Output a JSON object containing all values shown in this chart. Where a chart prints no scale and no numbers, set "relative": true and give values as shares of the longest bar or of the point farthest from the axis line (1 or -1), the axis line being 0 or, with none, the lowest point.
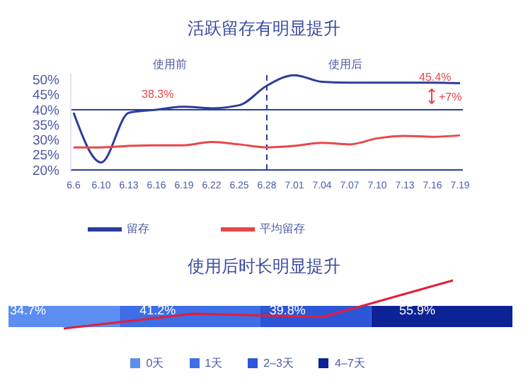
{
  "chart_data": [
    {
      "type": "line",
      "title": "活跃留存有明显提升",
      "categories": [
        "6.6",
        "6.10",
        "6.13",
        "6.16",
        "6.19",
        "6.22",
        "6.25",
        "6.28",
        "7.01",
        "7.04",
        "7.07",
        "7.10",
        "7.13",
        "7.16",
        "7.19"
      ],
      "series": [
        {
          "name": "留存",
          "color": "#2b3d9c",
          "values": [
            39,
            22.5,
            39,
            40,
            41,
            40.5,
            41.5,
            48,
            51.5,
            49.3,
            49,
            49,
            49,
            49,
            48.8
          ]
        },
        {
          "name": "平均留存",
          "color": "#e8474a",
          "values": [
            27.5,
            27.5,
            28,
            28.2,
            28.2,
            29.3,
            28.5,
            27.5,
            28,
            29,
            28.5,
            30.5,
            31.3,
            31,
            31.5
          ]
        }
      ],
      "ylim": [
        20,
        52
      ],
      "yticks": [
        {
          "value": 20,
          "label": "20%"
        },
        {
          "value": 25,
          "label": "25%"
        },
        {
          "value": 30,
          "label": "30%"
        },
        {
          "value": 35,
          "label": "35%"
        },
        {
          "value": 40,
          "label": "40%"
        },
        {
          "value": 45,
          "label": "45%"
        },
        {
          "value": 50,
          "label": "50%"
        }
      ],
      "ref_lines": [
        {
          "axis": "y",
          "value": 40,
          "color": "#2b3d9c",
          "line_style": "solid"
        },
        {
          "axis": "x",
          "value": "6.28",
          "color": "#2b3d9c",
          "line_style": "dashed"
        }
      ],
      "annotations": [
        "使用前",
        "使用后",
        "38.3%",
        "45.4%",
        "+7%"
      ],
      "legend": "bottom",
      "marker": "none",
      "grid": false
    },
    {
      "type": "bar",
      "title": "使用后时长明显提升",
      "orientation": "horizontal",
      "stacked": true,
      "relative": true,
      "categories": [
        null
      ],
      "series": [
        {
          "name": "0天",
          "color": "#5b8ef0",
          "values": [
            0.22
          ]
        },
        {
          "name": "1天",
          "color": "#3d6ee6",
          "values": [
            0.28
          ]
        },
        {
          "name": "2–3天",
          "color": "#2c55d8",
          "values": [
            0.22
          ]
        },
        {
          "name": "4–7天",
          "color": "#0d2294",
          "values": [
            0.28
          ]
        }
      ],
      "legend": "bottom"
    },
    {
      "type": "line",
      "categories": [
        null,
        null,
        null,
        null
      ],
      "series": [
        {
          "color": "#e0203a",
          "values": [
            34.7,
            41.2,
            39.8,
            55.9
          ],
          "value_labels": [
            "34.7%",
            "41.2%",
            "39.8%",
            "55.9%"
          ]
        }
      ],
      "marker": "none"
    }
  ]
}
